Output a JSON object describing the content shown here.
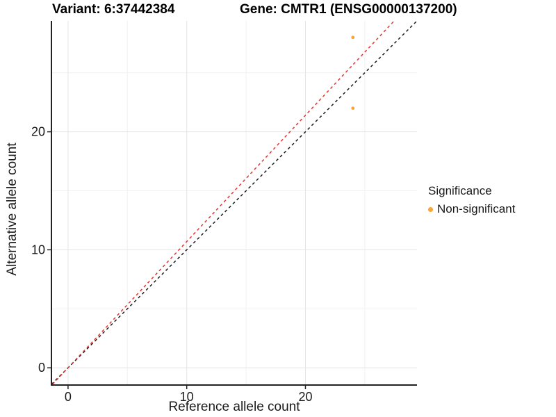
{
  "chart_data": {
    "type": "scatter",
    "titles": {
      "left": "Variant: 6:37442384",
      "right": "Gene: CMTR1 (ENSG00000137200)"
    },
    "xlabel": "Reference allele count",
    "ylabel": "Alternative allele count",
    "xlim": [
      -1.4,
      29.4
    ],
    "ylim": [
      -1.4,
      29.4
    ],
    "major_ticks": [
      0,
      10,
      20
    ],
    "minor_ticks": [
      5,
      15,
      25
    ],
    "grid": true,
    "points": [
      {
        "x": 24,
        "y": 28,
        "series": "Non-significant"
      },
      {
        "x": 24,
        "y": 22,
        "series": "Non-significant"
      }
    ],
    "point_color": "#faa43a",
    "reference_lines": [
      {
        "name": "identity-line",
        "slope": 1.0,
        "intercept": 0,
        "color": "#1a1a1a",
        "dash": true
      },
      {
        "name": "expected-ratio-line",
        "slope": 1.07,
        "intercept": 0,
        "color": "#e6322e",
        "dash": true
      }
    ],
    "legend": {
      "title": "Significance",
      "position": "right",
      "items": [
        {
          "label": "Non-significant",
          "color": "#faa43a"
        }
      ]
    },
    "colors": {
      "major_grid": "#e4e4e4",
      "minor_grid": "#f1f1f1",
      "axis_line": "#222222",
      "tick_text": "#1a1a1a"
    }
  }
}
